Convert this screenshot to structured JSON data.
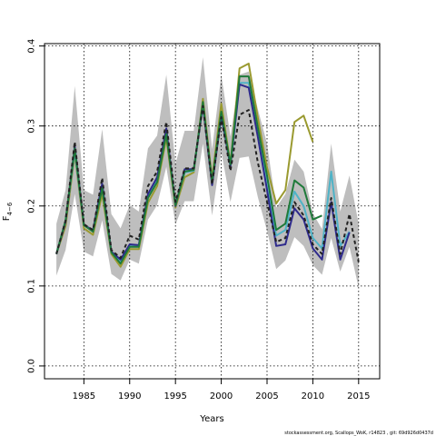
{
  "chart_data": {
    "type": "line",
    "xlabel": "Years",
    "ylabel": "F",
    "ylabel_subscript": "4−6",
    "footnote": "stockassessment.org, Scallops_WoK, r14823 , git: 69d926d0437d",
    "xlim": [
      1980.7,
      2017.3
    ],
    "ylim": [
      -0.016,
      0.403
    ],
    "x_ticks": [
      1985,
      1990,
      1995,
      2000,
      2005,
      2010,
      2015
    ],
    "x_tick_labels": [
      "1985",
      "1990",
      "1995",
      "2000",
      "2005",
      "2010",
      "2015"
    ],
    "y_ticks": [
      0.0,
      0.1,
      0.2,
      0.3,
      0.4
    ],
    "y_tick_labels": [
      "0.0",
      "0.1",
      "0.2",
      "0.3",
      "0.4"
    ],
    "grid": true,
    "band": {
      "color": "#bebebe",
      "x": [
        1982,
        1983,
        1984,
        1985,
        1986,
        1987,
        1988,
        1989,
        1990,
        1991,
        1992,
        1993,
        1994,
        1995,
        1996,
        1997,
        1998,
        1999,
        2000,
        2001,
        2002,
        2003,
        2004,
        2005,
        2006,
        2007,
        2008,
        2009,
        2010,
        2011,
        2012,
        2013,
        2014,
        2015
      ],
      "upper": [
        0.178,
        0.22,
        0.35,
        0.22,
        0.214,
        0.296,
        0.19,
        0.172,
        0.201,
        0.193,
        0.272,
        0.288,
        0.364,
        0.253,
        0.294,
        0.294,
        0.386,
        0.271,
        0.364,
        0.287,
        0.364,
        0.368,
        0.321,
        0.278,
        0.198,
        0.215,
        0.258,
        0.243,
        0.191,
        0.171,
        0.278,
        0.193,
        0.238,
        0.178
      ],
      "lower": [
        0.113,
        0.145,
        0.215,
        0.143,
        0.137,
        0.182,
        0.115,
        0.107,
        0.133,
        0.128,
        0.183,
        0.201,
        0.249,
        0.177,
        0.206,
        0.206,
        0.278,
        0.188,
        0.268,
        0.205,
        0.26,
        0.262,
        0.211,
        0.169,
        0.121,
        0.132,
        0.161,
        0.15,
        0.126,
        0.114,
        0.16,
        0.118,
        0.149,
        0.098
      ]
    },
    "series": [
      {
        "color": "#9a9a30",
        "dash": false,
        "width": 2,
        "x": [
          1982,
          1983,
          1984,
          1985,
          1986,
          1987,
          1988,
          1989,
          1990,
          1991,
          1992,
          1993,
          1994,
          1995,
          1996,
          1997,
          1998,
          1999,
          2000,
          2001,
          2002,
          2003,
          2004,
          2005,
          2006,
          2007,
          2008,
          2009,
          2010
        ],
        "values": [
          0.14,
          0.175,
          0.265,
          0.172,
          0.164,
          0.215,
          0.14,
          0.124,
          0.146,
          0.146,
          0.204,
          0.225,
          0.285,
          0.198,
          0.236,
          0.242,
          0.334,
          0.234,
          0.328,
          0.253,
          0.372,
          0.378,
          0.31,
          0.248,
          0.203,
          0.22,
          0.305,
          0.313,
          0.28
        ]
      },
      {
        "color": "#4fb3c7",
        "dash": false,
        "width": 2,
        "x": [
          1982,
          1983,
          1984,
          1985,
          1986,
          1987,
          1988,
          1989,
          1990,
          1991,
          1992,
          1993,
          1994,
          1995,
          1996,
          1997,
          1998,
          1999,
          2000,
          2001,
          2002,
          2003,
          2004,
          2005,
          2006,
          2007,
          2008,
          2009,
          2010,
          2011,
          2012,
          2013,
          2014
        ],
        "values": [
          0.14,
          0.182,
          0.268,
          0.176,
          0.169,
          0.223,
          0.142,
          0.131,
          0.151,
          0.151,
          0.212,
          0.232,
          0.292,
          0.202,
          0.242,
          0.244,
          0.327,
          0.228,
          0.313,
          0.25,
          0.354,
          0.354,
          0.292,
          0.225,
          0.163,
          0.17,
          0.218,
          0.2,
          0.16,
          0.147,
          0.243,
          0.15,
          0.168
        ]
      },
      {
        "color": "#2e2a8c",
        "dash": false,
        "width": 2,
        "x": [
          1982,
          1983,
          1984,
          1985,
          1986,
          1987,
          1988,
          1989,
          1990,
          1991,
          1992,
          1993,
          1994,
          1995,
          1996,
          1997,
          1998,
          1999,
          2000,
          2001,
          2002,
          2003,
          2004,
          2005,
          2006,
          2007,
          2008,
          2009,
          2010,
          2011,
          2012,
          2013,
          2014
        ],
        "values": [
          0.14,
          0.18,
          0.275,
          0.176,
          0.17,
          0.228,
          0.143,
          0.133,
          0.152,
          0.151,
          0.215,
          0.236,
          0.297,
          0.2,
          0.246,
          0.246,
          0.326,
          0.226,
          0.313,
          0.25,
          0.352,
          0.348,
          0.286,
          0.22,
          0.15,
          0.152,
          0.197,
          0.183,
          0.147,
          0.133,
          0.205,
          0.133,
          0.167
        ]
      },
      {
        "color": "#1f7a3a",
        "dash": false,
        "width": 2,
        "x": [
          1982,
          1983,
          1984,
          1985,
          1986,
          1987,
          1988,
          1989,
          1990,
          1991,
          1992,
          1993,
          1994,
          1995,
          1996,
          1997,
          1998,
          1999,
          2000,
          2001,
          2002,
          2003,
          2004,
          2005,
          2006,
          2007,
          2008,
          2009,
          2010,
          2011
        ],
        "values": [
          0.14,
          0.182,
          0.272,
          0.176,
          0.168,
          0.222,
          0.142,
          0.128,
          0.149,
          0.149,
          0.21,
          0.23,
          0.29,
          0.201,
          0.243,
          0.245,
          0.33,
          0.23,
          0.318,
          0.252,
          0.362,
          0.362,
          0.298,
          0.238,
          0.17,
          0.178,
          0.232,
          0.223,
          0.183,
          0.188
        ]
      },
      {
        "color": "#222222",
        "dash": true,
        "width": 2,
        "x": [
          1982,
          1983,
          1984,
          1985,
          1986,
          1987,
          1988,
          1989,
          1990,
          1991,
          1992,
          1993,
          1994,
          1995,
          1996,
          1997,
          1998,
          1999,
          2000,
          2001,
          2002,
          2003,
          2004,
          2005,
          2006,
          2007,
          2008,
          2009,
          2010,
          2011,
          2012,
          2013,
          2014,
          2015
        ],
        "values": [
          0.14,
          0.182,
          0.28,
          0.177,
          0.17,
          0.235,
          0.145,
          0.135,
          0.163,
          0.158,
          0.225,
          0.243,
          0.305,
          0.205,
          0.247,
          0.247,
          0.325,
          0.227,
          0.311,
          0.244,
          0.314,
          0.32,
          0.254,
          0.205,
          0.155,
          0.16,
          0.205,
          0.188,
          0.152,
          0.14,
          0.21,
          0.14,
          0.19,
          0.13
        ]
      }
    ]
  }
}
